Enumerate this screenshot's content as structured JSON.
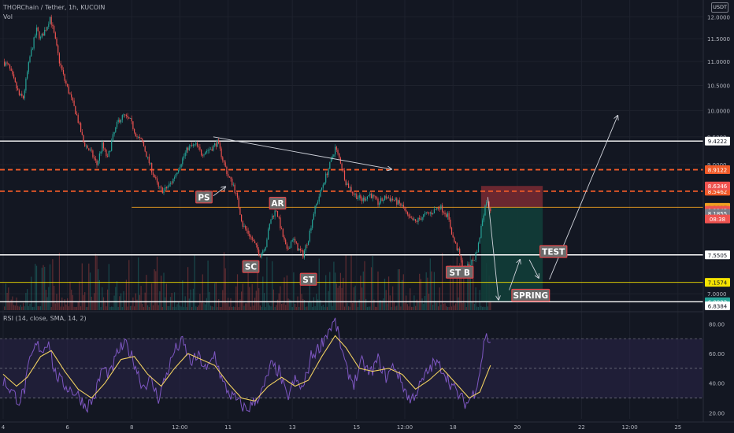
{
  "header": {
    "symbol_line": "THORChain / Tether, 1h, KUCOIN",
    "volume_label": "Vol",
    "currency": "USDT"
  },
  "rsi_label": "RSI (14, close, SMA, 14, 2)",
  "colors": {
    "background": "#131722",
    "up_candle": "#26a69a",
    "down_candle": "#ef5350",
    "rsi_line": "#7e57c2",
    "rsi_ma": "#f0d060",
    "rsi_band": "#2a2548",
    "support_line": "#ffffff",
    "resistance_dashed": "#f05a28",
    "orange_line": "#f0a020",
    "yellow_line": "#f5e300",
    "stop_zone": "#7a2a33",
    "target_zone": "#123d39"
  },
  "chart_data": [
    {
      "type": "candlestick",
      "title": "THORChain / Tether, 1h, KUCOIN",
      "ylabel": "USDT",
      "ylim": [
        6.78,
        12.4
      ],
      "y_scale": "log",
      "y_ticks": [
        "12.0000",
        "11.5000",
        "11.0000",
        "10.5000",
        "10.0000",
        "9.5000",
        "9.0000",
        "7.0000"
      ],
      "x_ticks": [
        {
          "label": "4",
          "i": 0
        },
        {
          "label": "6",
          "i": 48
        },
        {
          "label": "8",
          "i": 96
        },
        {
          "label": "12:00",
          "i": 132
        },
        {
          "label": "11",
          "i": 168
        },
        {
          "label": "13",
          "i": 216
        },
        {
          "label": "15",
          "i": 264
        },
        {
          "label": "12:00",
          "i": 300
        },
        {
          "label": "18",
          "i": 336
        },
        {
          "label": "20",
          "i": 384
        },
        {
          "label": "22",
          "i": 432
        },
        {
          "label": "12:00",
          "i": 468
        },
        {
          "label": "25",
          "i": 504
        }
      ],
      "price_path": [
        {
          "i": 0,
          "v": 11.0
        },
        {
          "i": 4,
          "v": 10.9
        },
        {
          "i": 8,
          "v": 10.6
        },
        {
          "i": 12,
          "v": 10.3
        },
        {
          "i": 15,
          "v": 10.25
        },
        {
          "i": 20,
          "v": 11.1
        },
        {
          "i": 25,
          "v": 11.7
        },
        {
          "i": 28,
          "v": 11.5
        },
        {
          "i": 33,
          "v": 11.8
        },
        {
          "i": 35,
          "v": 12.0
        },
        {
          "i": 38,
          "v": 11.6
        },
        {
          "i": 42,
          "v": 11.0
        },
        {
          "i": 46,
          "v": 10.6
        },
        {
          "i": 50,
          "v": 10.3
        },
        {
          "i": 55,
          "v": 9.9
        },
        {
          "i": 60,
          "v": 9.4
        },
        {
          "i": 66,
          "v": 9.2
        },
        {
          "i": 70,
          "v": 9.0
        },
        {
          "i": 74,
          "v": 9.35
        },
        {
          "i": 78,
          "v": 9.1
        },
        {
          "i": 82,
          "v": 9.5
        },
        {
          "i": 86,
          "v": 9.8
        },
        {
          "i": 90,
          "v": 9.9
        },
        {
          "i": 95,
          "v": 9.8
        },
        {
          "i": 100,
          "v": 9.5
        },
        {
          "i": 104,
          "v": 9.4
        },
        {
          "i": 108,
          "v": 9.1
        },
        {
          "i": 112,
          "v": 8.85
        },
        {
          "i": 116,
          "v": 8.6
        },
        {
          "i": 120,
          "v": 8.55
        },
        {
          "i": 126,
          "v": 8.7
        },
        {
          "i": 132,
          "v": 9.0
        },
        {
          "i": 138,
          "v": 9.3
        },
        {
          "i": 144,
          "v": 9.35
        },
        {
          "i": 148,
          "v": 9.2
        },
        {
          "i": 152,
          "v": 9.25
        },
        {
          "i": 156,
          "v": 9.3
        },
        {
          "i": 160,
          "v": 9.4
        },
        {
          "i": 164,
          "v": 9.1
        },
        {
          "i": 168,
          "v": 8.8
        },
        {
          "i": 172,
          "v": 8.65
        },
        {
          "i": 175,
          "v": 8.4
        },
        {
          "i": 179,
          "v": 8.0
        },
        {
          "i": 184,
          "v": 7.85
        },
        {
          "i": 188,
          "v": 7.7
        },
        {
          "i": 192,
          "v": 7.55
        },
        {
          "i": 196,
          "v": 7.7
        },
        {
          "i": 200,
          "v": 8.1
        },
        {
          "i": 204,
          "v": 8.25
        },
        {
          "i": 208,
          "v": 7.9
        },
        {
          "i": 212,
          "v": 7.6
        },
        {
          "i": 216,
          "v": 7.8
        },
        {
          "i": 220,
          "v": 7.65
        },
        {
          "i": 224,
          "v": 7.55
        },
        {
          "i": 228,
          "v": 7.8
        },
        {
          "i": 232,
          "v": 8.2
        },
        {
          "i": 238,
          "v": 8.6
        },
        {
          "i": 244,
          "v": 9.0
        },
        {
          "i": 248,
          "v": 9.3
        },
        {
          "i": 252,
          "v": 9.05
        },
        {
          "i": 256,
          "v": 8.7
        },
        {
          "i": 262,
          "v": 8.5
        },
        {
          "i": 268,
          "v": 8.4
        },
        {
          "i": 274,
          "v": 8.5
        },
        {
          "i": 280,
          "v": 8.35
        },
        {
          "i": 286,
          "v": 8.45
        },
        {
          "i": 292,
          "v": 8.4
        },
        {
          "i": 298,
          "v": 8.3
        },
        {
          "i": 303,
          "v": 8.1
        },
        {
          "i": 308,
          "v": 8.05
        },
        {
          "i": 314,
          "v": 8.15
        },
        {
          "i": 320,
          "v": 8.2
        },
        {
          "i": 326,
          "v": 8.3
        },
        {
          "i": 332,
          "v": 8.15
        },
        {
          "i": 336,
          "v": 7.8
        },
        {
          "i": 340,
          "v": 7.6
        },
        {
          "i": 344,
          "v": 7.3
        },
        {
          "i": 348,
          "v": 7.4
        },
        {
          "i": 352,
          "v": 7.5
        },
        {
          "i": 355,
          "v": 7.7
        },
        {
          "i": 358,
          "v": 8.1
        },
        {
          "i": 361,
          "v": 8.4
        },
        {
          "i": 364,
          "v": 8.25
        }
      ],
      "levels": [
        {
          "price": 9.4222,
          "label": "9.4222",
          "style": "solid-white",
          "tag_bg": "#ffffff",
          "tag_fg": "#131722"
        },
        {
          "price": 8.9122,
          "label": "8.9122",
          "style": "dashed-orange",
          "tag_bg": "#f05a28",
          "tag_fg": "#ffffff"
        },
        {
          "price": 8.5462,
          "label": "8.5462",
          "style": "dashed-orange",
          "tag_bg": "#f05a28",
          "tag_fg": "#ffffff"
        },
        {
          "price": 8.2827,
          "label": "8.2827",
          "style": "solid-orange",
          "tag_bg": "#f0a020",
          "tag_fg": "#131722"
        },
        {
          "price": 7.5505,
          "label": "7.5505",
          "style": "solid-white",
          "tag_bg": "#ffffff",
          "tag_fg": "#131722"
        },
        {
          "price": 7.1574,
          "label": "7.1574",
          "style": "solid-yellow",
          "tag_bg": "#f5e300",
          "tag_fg": "#131722"
        },
        {
          "price": 6.8923,
          "label": "6.8923",
          "style": "solid-white",
          "tag_bg": "#26a69a",
          "tag_fg": "#ffffff"
        }
      ],
      "price_tags": [
        {
          "price": 8.6346,
          "label": "8.6346",
          "bg": "#ef5350",
          "fg": "#ffffff"
        },
        {
          "price": 8.2345,
          "label": "8.2345",
          "bg": "#ef5350",
          "fg": "#ffffff"
        },
        {
          "price": 8.1855,
          "label": "8.1855",
          "bg": "#787b86",
          "fg": "#ffffff"
        },
        {
          "price": 6.8384,
          "label": "6.8384",
          "bg": "#ffffff",
          "fg": "#131722"
        }
      ],
      "countdown": "08:38",
      "annotations": [
        {
          "text": "PS",
          "i": 150,
          "v": 8.45
        },
        {
          "text": "AR",
          "i": 205,
          "v": 8.35
        },
        {
          "text": "SC",
          "i": 185,
          "v": 7.38
        },
        {
          "text": "ST",
          "i": 228,
          "v": 7.2
        },
        {
          "text": "ST B",
          "i": 341,
          "v": 7.3
        },
        {
          "text": "TEST",
          "i": 411,
          "v": 7.6
        },
        {
          "text": "SPRING",
          "i": 394,
          "v": 6.98
        }
      ],
      "position": {
        "start_i": 357,
        "end_i": 403,
        "entry": 8.2827,
        "stop": 8.6346,
        "target": 6.8923
      }
    },
    {
      "type": "line",
      "title": "RSI (14, close, SMA, 14, 2)",
      "ylim": [
        16,
        86
      ],
      "y_ticks": [
        "80.00",
        "60.00",
        "40.00",
        "20.00"
      ],
      "band": [
        30,
        70
      ],
      "mid": 50,
      "series": [
        {
          "name": "RSI",
          "points": [
            {
              "i": 0,
              "v": 42
            },
            {
              "i": 6,
              "v": 35
            },
            {
              "i": 12,
              "v": 28
            },
            {
              "i": 16,
              "v": 36
            },
            {
              "i": 20,
              "v": 55
            },
            {
              "i": 25,
              "v": 66
            },
            {
              "i": 30,
              "v": 62
            },
            {
              "i": 34,
              "v": 70
            },
            {
              "i": 38,
              "v": 48
            },
            {
              "i": 44,
              "v": 40
            },
            {
              "i": 50,
              "v": 36
            },
            {
              "i": 56,
              "v": 32
            },
            {
              "i": 62,
              "v": 24
            },
            {
              "i": 68,
              "v": 30
            },
            {
              "i": 74,
              "v": 50
            },
            {
              "i": 80,
              "v": 46
            },
            {
              "i": 86,
              "v": 62
            },
            {
              "i": 92,
              "v": 66
            },
            {
              "i": 98,
              "v": 54
            },
            {
              "i": 104,
              "v": 38
            },
            {
              "i": 110,
              "v": 42
            },
            {
              "i": 116,
              "v": 30
            },
            {
              "i": 122,
              "v": 46
            },
            {
              "i": 128,
              "v": 62
            },
            {
              "i": 134,
              "v": 68
            },
            {
              "i": 140,
              "v": 54
            },
            {
              "i": 146,
              "v": 58
            },
            {
              "i": 152,
              "v": 48
            },
            {
              "i": 158,
              "v": 60
            },
            {
              "i": 164,
              "v": 40
            },
            {
              "i": 170,
              "v": 32
            },
            {
              "i": 176,
              "v": 27
            },
            {
              "i": 182,
              "v": 22
            },
            {
              "i": 188,
              "v": 28
            },
            {
              "i": 194,
              "v": 35
            },
            {
              "i": 200,
              "v": 52
            },
            {
              "i": 206,
              "v": 48
            },
            {
              "i": 212,
              "v": 30
            },
            {
              "i": 218,
              "v": 42
            },
            {
              "i": 224,
              "v": 36
            },
            {
              "i": 230,
              "v": 58
            },
            {
              "i": 236,
              "v": 64
            },
            {
              "i": 242,
              "v": 74
            },
            {
              "i": 248,
              "v": 82
            },
            {
              "i": 252,
              "v": 66
            },
            {
              "i": 256,
              "v": 50
            },
            {
              "i": 262,
              "v": 40
            },
            {
              "i": 268,
              "v": 54
            },
            {
              "i": 274,
              "v": 46
            },
            {
              "i": 280,
              "v": 56
            },
            {
              "i": 286,
              "v": 44
            },
            {
              "i": 292,
              "v": 52
            },
            {
              "i": 298,
              "v": 40
            },
            {
              "i": 304,
              "v": 28
            },
            {
              "i": 310,
              "v": 36
            },
            {
              "i": 316,
              "v": 46
            },
            {
              "i": 322,
              "v": 54
            },
            {
              "i": 328,
              "v": 50
            },
            {
              "i": 334,
              "v": 40
            },
            {
              "i": 340,
              "v": 32
            },
            {
              "i": 346,
              "v": 26
            },
            {
              "i": 352,
              "v": 34
            },
            {
              "i": 356,
              "v": 48
            },
            {
              "i": 360,
              "v": 72
            },
            {
              "i": 364,
              "v": 68
            }
          ]
        },
        {
          "name": "RSI-based MA",
          "points": [
            {
              "i": 0,
              "v": 46
            },
            {
              "i": 10,
              "v": 38
            },
            {
              "i": 18,
              "v": 44
            },
            {
              "i": 28,
              "v": 58
            },
            {
              "i": 36,
              "v": 62
            },
            {
              "i": 46,
              "v": 48
            },
            {
              "i": 56,
              "v": 36
            },
            {
              "i": 66,
              "v": 30
            },
            {
              "i": 76,
              "v": 40
            },
            {
              "i": 88,
              "v": 56
            },
            {
              "i": 98,
              "v": 58
            },
            {
              "i": 108,
              "v": 46
            },
            {
              "i": 118,
              "v": 38
            },
            {
              "i": 128,
              "v": 50
            },
            {
              "i": 138,
              "v": 60
            },
            {
              "i": 148,
              "v": 56
            },
            {
              "i": 158,
              "v": 52
            },
            {
              "i": 168,
              "v": 40
            },
            {
              "i": 178,
              "v": 30
            },
            {
              "i": 188,
              "v": 28
            },
            {
              "i": 198,
              "v": 38
            },
            {
              "i": 208,
              "v": 44
            },
            {
              "i": 218,
              "v": 38
            },
            {
              "i": 228,
              "v": 42
            },
            {
              "i": 238,
              "v": 58
            },
            {
              "i": 248,
              "v": 72
            },
            {
              "i": 256,
              "v": 64
            },
            {
              "i": 266,
              "v": 50
            },
            {
              "i": 276,
              "v": 48
            },
            {
              "i": 288,
              "v": 50
            },
            {
              "i": 298,
              "v": 46
            },
            {
              "i": 308,
              "v": 36
            },
            {
              "i": 318,
              "v": 42
            },
            {
              "i": 328,
              "v": 50
            },
            {
              "i": 338,
              "v": 40
            },
            {
              "i": 348,
              "v": 30
            },
            {
              "i": 356,
              "v": 34
            },
            {
              "i": 364,
              "v": 52
            }
          ]
        }
      ]
    }
  ]
}
